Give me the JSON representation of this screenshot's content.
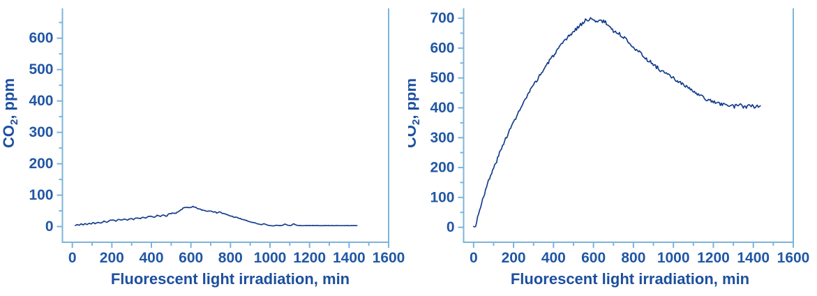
{
  "figure": {
    "background": "#ffffff",
    "description": "Two line charts of CO2 concentration versus fluorescent light irradiation time"
  },
  "colors": {
    "axis": "#7cb4d8",
    "tick_label": "#2157a5",
    "axis_title": "#1c4f9e",
    "series_line": "#163e8c"
  },
  "chart_data": [
    {
      "type": "line",
      "title": "",
      "xlabel": "Fluorescent light irradiation, min",
      "ylabel": "CO2, ppm",
      "ylabel_parts": {
        "prefix": "CO",
        "subscript": "2",
        "suffix": ", ppm"
      },
      "xlim": [
        -50,
        1600
      ],
      "ylim": [
        -50,
        695
      ],
      "grid": false,
      "legend": null,
      "x_ticks_major": [
        0,
        200,
        400,
        600,
        800,
        1000,
        1200,
        1400,
        1600
      ],
      "x_ticks_minor": [
        100,
        300,
        500,
        700,
        900,
        1100,
        1300,
        1500
      ],
      "y_ticks_major": [
        0,
        100,
        200,
        300,
        400,
        500,
        600
      ],
      "y_ticks_minor": [
        50,
        150,
        250,
        350,
        450,
        550,
        650
      ],
      "series": [
        {
          "name": "CO2 ppm",
          "noise": 1.5,
          "seed": 7,
          "points": [
            [
              15,
              4
            ],
            [
              25,
              6
            ],
            [
              35,
              4
            ],
            [
              45,
              9
            ],
            [
              55,
              5
            ],
            [
              65,
              10
            ],
            [
              75,
              6
            ],
            [
              85,
              11
            ],
            [
              95,
              8
            ],
            [
              105,
              13
            ],
            [
              115,
              9
            ],
            [
              130,
              14
            ],
            [
              145,
              11
            ],
            [
              160,
              17
            ],
            [
              175,
              13
            ],
            [
              190,
              19
            ],
            [
              205,
              22
            ],
            [
              220,
              18
            ],
            [
              235,
              23
            ],
            [
              250,
              20
            ],
            [
              265,
              24
            ],
            [
              280,
              21
            ],
            [
              295,
              26
            ],
            [
              310,
              23
            ],
            [
              325,
              27
            ],
            [
              340,
              25
            ],
            [
              355,
              29
            ],
            [
              370,
              26
            ],
            [
              385,
              31
            ],
            [
              400,
              33
            ],
            [
              415,
              29
            ],
            [
              430,
              35
            ],
            [
              445,
              32
            ],
            [
              460,
              37
            ],
            [
              475,
              34
            ],
            [
              490,
              40
            ],
            [
              505,
              43
            ],
            [
              520,
              41
            ],
            [
              535,
              46
            ],
            [
              550,
              53
            ],
            [
              565,
              60
            ],
            [
              580,
              62
            ],
            [
              595,
              59
            ],
            [
              610,
              63
            ],
            [
              625,
              60
            ],
            [
              640,
              56
            ],
            [
              655,
              53
            ],
            [
              670,
              51
            ],
            [
              685,
              49
            ],
            [
              700,
              51
            ],
            [
              715,
              47
            ],
            [
              730,
              44
            ],
            [
              745,
              47
            ],
            [
              760,
              42
            ],
            [
              775,
              39
            ],
            [
              790,
              36
            ],
            [
              805,
              33
            ],
            [
              820,
              30
            ],
            [
              835,
              28
            ],
            [
              850,
              25
            ],
            [
              865,
              22
            ],
            [
              880,
              19
            ],
            [
              895,
              16
            ],
            [
              910,
              13
            ],
            [
              925,
              11
            ],
            [
              940,
              8
            ],
            [
              955,
              6
            ],
            [
              970,
              9
            ],
            [
              985,
              5
            ],
            [
              1000,
              3
            ],
            [
              1015,
              2
            ],
            [
              1030,
              4
            ],
            [
              1045,
              3
            ],
            [
              1060,
              3
            ],
            [
              1075,
              8
            ],
            [
              1090,
              4
            ],
            [
              1105,
              3
            ],
            [
              1120,
              9
            ],
            [
              1135,
              4
            ],
            [
              1150,
              3
            ],
            [
              1180,
              3
            ],
            [
              1220,
              3
            ],
            [
              1270,
              3
            ],
            [
              1320,
              3
            ],
            [
              1370,
              3
            ],
            [
              1410,
              3
            ],
            [
              1440,
              3
            ]
          ]
        }
      ]
    },
    {
      "type": "line",
      "title": "",
      "xlabel": "Fluorescent light irradiation, min",
      "ylabel": "CO2, ppm",
      "ylabel_parts": {
        "prefix": "CO",
        "subscript": "2",
        "suffix": ", ppm"
      },
      "xlim": [
        -50,
        1600
      ],
      "ylim": [
        -50,
        733
      ],
      "grid": false,
      "legend": null,
      "x_ticks_major": [
        0,
        200,
        400,
        600,
        800,
        1000,
        1200,
        1400,
        1600
      ],
      "x_ticks_minor": [
        100,
        300,
        500,
        700,
        900,
        1100,
        1300,
        1500
      ],
      "y_ticks_major": [
        0,
        100,
        200,
        300,
        400,
        500,
        600,
        700
      ],
      "y_ticks_minor": [
        50,
        150,
        250,
        350,
        450,
        550,
        650
      ],
      "series": [
        {
          "name": "CO2 ppm",
          "noise": 6,
          "seed": 3,
          "points": [
            [
              0,
              2
            ],
            [
              10,
              3
            ],
            [
              15,
              20
            ],
            [
              25,
              45
            ],
            [
              35,
              70
            ],
            [
              45,
              95
            ],
            [
              55,
              115
            ],
            [
              65,
              135
            ],
            [
              75,
              155
            ],
            [
              85,
              172
            ],
            [
              95,
              190
            ],
            [
              105,
              205
            ],
            [
              115,
              222
            ],
            [
              125,
              240
            ],
            [
              135,
              255
            ],
            [
              145,
              272
            ],
            [
              155,
              290
            ],
            [
              165,
              305
            ],
            [
              175,
              318
            ],
            [
              185,
              330
            ],
            [
              195,
              345
            ],
            [
              205,
              360
            ],
            [
              215,
              372
            ],
            [
              225,
              385
            ],
            [
              235,
              398
            ],
            [
              245,
              410
            ],
            [
              255,
              422
            ],
            [
              265,
              435
            ],
            [
              275,
              448
            ],
            [
              285,
              458
            ],
            [
              295,
              470
            ],
            [
              305,
              480
            ],
            [
              315,
              492
            ],
            [
              325,
              502
            ],
            [
              335,
              512
            ],
            [
              345,
              522
            ],
            [
              355,
              532
            ],
            [
              365,
              545
            ],
            [
              375,
              552
            ],
            [
              385,
              562
            ],
            [
              395,
              572
            ],
            [
              405,
              580
            ],
            [
              415,
              590
            ],
            [
              425,
              598
            ],
            [
              435,
              605
            ],
            [
              445,
              615
            ],
            [
              455,
              622
            ],
            [
              465,
              630
            ],
            [
              475,
              638
            ],
            [
              485,
              645
            ],
            [
              495,
              652
            ],
            [
              505,
              658
            ],
            [
              515,
              665
            ],
            [
              525,
              672
            ],
            [
              535,
              678
            ],
            [
              545,
              684
            ],
            [
              555,
              690
            ],
            [
              565,
              694
            ],
            [
              575,
              697
            ],
            [
              585,
              700
            ],
            [
              595,
              693
            ],
            [
              605,
              690
            ],
            [
              615,
              694
            ],
            [
              625,
              690
            ],
            [
              635,
              693
            ],
            [
              645,
              687
            ],
            [
              655,
              690
            ],
            [
              665,
              682
            ],
            [
              675,
              676
            ],
            [
              685,
              670
            ],
            [
              695,
              662
            ],
            [
              705,
              655
            ],
            [
              715,
              652
            ],
            [
              725,
              648
            ],
            [
              735,
              645
            ],
            [
              745,
              640
            ],
            [
              755,
              634
            ],
            [
              765,
              628
            ],
            [
              775,
              622
            ],
            [
              785,
              615
            ],
            [
              795,
              608
            ],
            [
              805,
              601
            ],
            [
              815,
              595
            ],
            [
              825,
              589
            ],
            [
              835,
              582
            ],
            [
              845,
              576
            ],
            [
              855,
              570
            ],
            [
              865,
              564
            ],
            [
              875,
              558
            ],
            [
              885,
              553
            ],
            [
              895,
              548
            ],
            [
              905,
              543
            ],
            [
              915,
              537
            ],
            [
              925,
              532
            ],
            [
              935,
              527
            ],
            [
              945,
              522
            ],
            [
              955,
              517
            ],
            [
              965,
              513
            ],
            [
              975,
              509
            ],
            [
              985,
              505
            ],
            [
              995,
              501
            ],
            [
              1005,
              497
            ],
            [
              1015,
              492
            ],
            [
              1025,
              488
            ],
            [
              1035,
              484
            ],
            [
              1045,
              480
            ],
            [
              1055,
              475
            ],
            [
              1065,
              470
            ],
            [
              1075,
              466
            ],
            [
              1085,
              461
            ],
            [
              1095,
              457
            ],
            [
              1105,
              452
            ],
            [
              1115,
              448
            ],
            [
              1125,
              444
            ],
            [
              1135,
              440
            ],
            [
              1145,
              436
            ],
            [
              1155,
              432
            ],
            [
              1165,
              429
            ],
            [
              1175,
              426
            ],
            [
              1185,
              423
            ],
            [
              1195,
              421
            ],
            [
              1205,
              419
            ],
            [
              1215,
              417
            ],
            [
              1225,
              415
            ],
            [
              1235,
              413
            ],
            [
              1245,
              411
            ],
            [
              1255,
              410
            ],
            [
              1265,
              408
            ],
            [
              1275,
              411
            ],
            [
              1285,
              406
            ],
            [
              1295,
              410
            ],
            [
              1305,
              404
            ],
            [
              1315,
              409
            ],
            [
              1325,
              403
            ],
            [
              1335,
              408
            ],
            [
              1345,
              402
            ],
            [
              1355,
              407
            ],
            [
              1365,
              403
            ],
            [
              1375,
              409
            ],
            [
              1385,
              404
            ],
            [
              1395,
              410
            ],
            [
              1405,
              403
            ],
            [
              1415,
              408
            ],
            [
              1425,
              404
            ],
            [
              1435,
              407
            ]
          ]
        }
      ]
    }
  ]
}
